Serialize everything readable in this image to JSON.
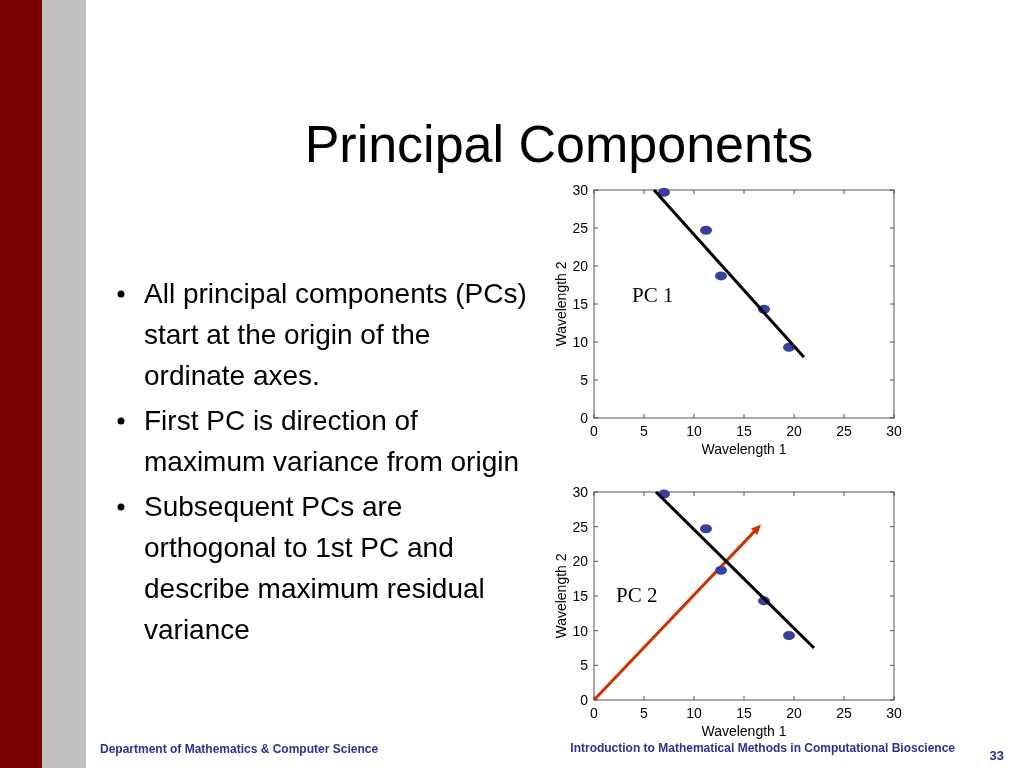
{
  "chart_data": [
    {
      "type": "scatter",
      "title": "Principal Components",
      "xlabel": "Wavelength 1",
      "ylabel": "Wavelength 2",
      "xlim": [
        0,
        30
      ],
      "ylim": [
        0,
        30
      ],
      "xticks": [
        0,
        5,
        10,
        15,
        20,
        25,
        30
      ],
      "yticks": [
        0,
        5,
        10,
        15,
        20,
        25,
        30
      ],
      "grid": false,
      "series": [
        {
          "color": "#3a3f9e",
          "marker": "circle",
          "x": [
            7,
            11.2,
            12.7,
            17,
            19.5
          ],
          "values": [
            29.7,
            24.7,
            18.7,
            14.3,
            9.3
          ]
        },
        {
          "type": "line",
          "color": "#000000",
          "marker": "none",
          "x": [
            6,
            21
          ],
          "values": [
            30,
            8
          ]
        }
      ],
      "annotations": [
        "All principal components (PCs) start at the origin of the ordinate axes.",
        "First PC is direction of maximum variance from origin",
        "Subsequent PCs are orthogonal to 1st PC and describe maximum residual variance",
        "PC 1"
      ]
    },
    {
      "type": "scatter",
      "xlabel": "Wavelength 1",
      "ylabel": "Wavelength 2",
      "xlim": [
        0,
        30
      ],
      "ylim": [
        0,
        30
      ],
      "xticks": [
        0,
        5,
        10,
        15,
        20,
        25,
        30
      ],
      "yticks": [
        0,
        5,
        10,
        15,
        20,
        25,
        30
      ],
      "grid": false,
      "series": [
        {
          "color": "#3a3f9e",
          "marker": "circle",
          "x": [
            7,
            11.2,
            12.7,
            17,
            19.5
          ],
          "values": [
            29.7,
            24.7,
            18.7,
            14.3,
            9.3
          ]
        },
        {
          "type": "line",
          "color": "#000000",
          "marker": "none",
          "x": [
            6.2,
            22
          ],
          "values": [
            30,
            7.5
          ]
        }
      ],
      "annotations": [
        "PC 2",
        "Department of Mathematics & Computer Science",
        "Introduction to Mathematical Methods in Computational Bioscience",
        "33"
      ]
    }
  ]
}
